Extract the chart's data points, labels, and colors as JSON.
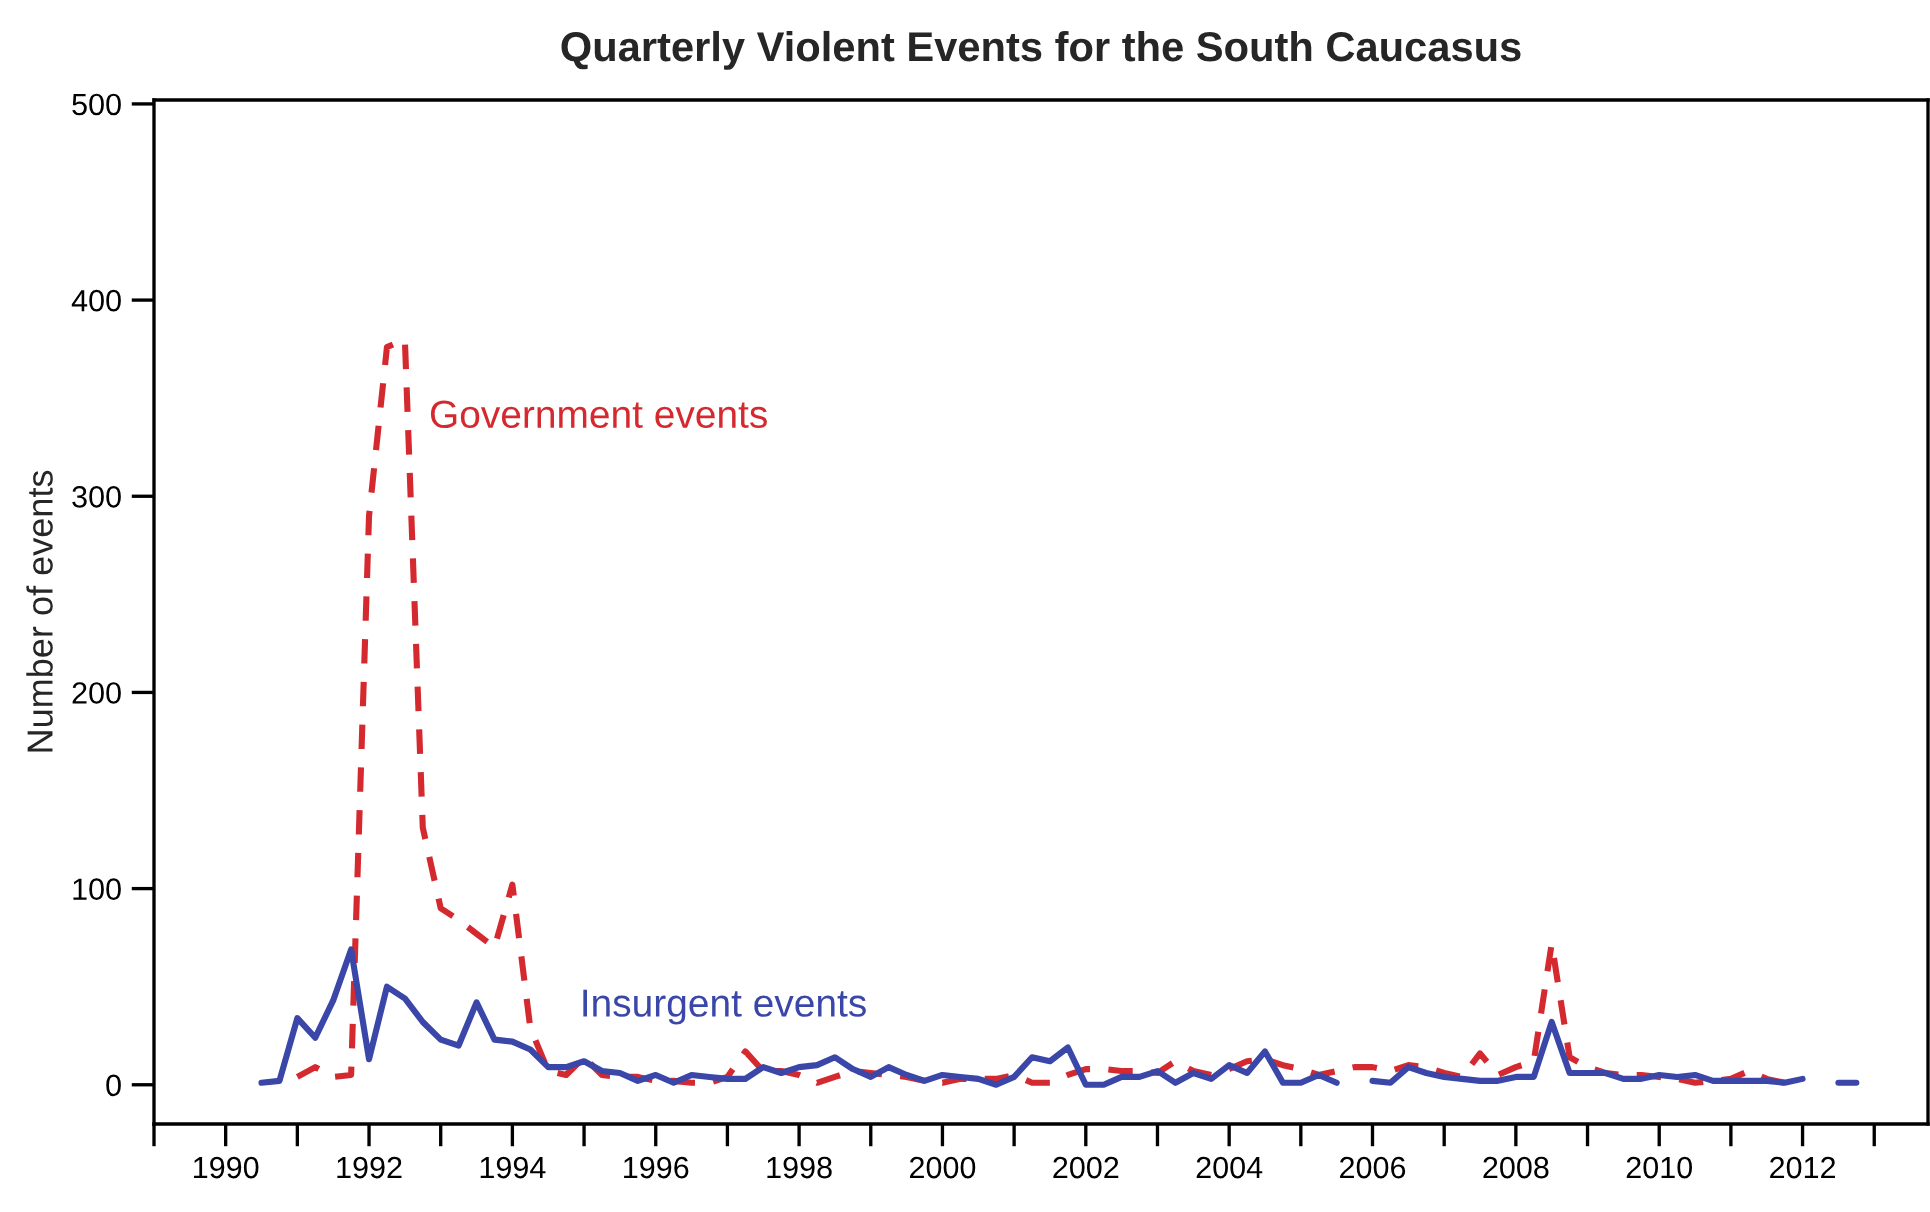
{
  "chart_data": {
    "type": "line",
    "title": "Quarterly Violent Events for the South Caucasus",
    "ylabel": "Number of events",
    "x": [
      1990.5,
      1990.75,
      1991,
      1991.25,
      1991.5,
      1991.75,
      1992,
      1992.25,
      1992.5,
      1992.75,
      1993,
      1993.25,
      1993.5,
      1993.75,
      1994,
      1994.25,
      1994.5,
      1994.75,
      1995,
      1995.25,
      1995.5,
      1995.75,
      1996,
      1996.25,
      1996.5,
      1996.75,
      1997,
      1997.25,
      1997.5,
      1997.75,
      1998,
      1998.25,
      1998.5,
      1998.75,
      1999,
      1999.25,
      1999.5,
      1999.75,
      2000,
      2000.25,
      2000.5,
      2000.75,
      2001,
      2001.25,
      2001.5,
      2001.75,
      2002,
      2002.25,
      2002.5,
      2002.75,
      2003,
      2003.25,
      2003.5,
      2003.75,
      2004,
      2004.25,
      2004.5,
      2004.75,
      2005,
      2005.25,
      2005.5,
      2005.75,
      2006,
      2006.25,
      2006.5,
      2006.75,
      2007,
      2007.25,
      2007.5,
      2007.75,
      2008,
      2008.25,
      2008.5,
      2008.75,
      2009,
      2009.25,
      2009.5,
      2009.75,
      2010,
      2010.25,
      2010.5,
      2010.75,
      2011,
      2011.25,
      2011.5,
      2011.75,
      2012,
      2012.25,
      2012.5,
      2012.75
    ],
    "series": [
      {
        "name": "Government events",
        "color": "#d42a2f",
        "line_style": "dashed",
        "values": [
          null,
          null,
          4,
          9,
          4,
          5,
          290,
          376,
          380,
          131,
          90,
          84,
          77,
          70,
          102,
          29,
          7,
          5,
          14,
          5,
          4,
          4,
          2,
          2,
          1,
          1,
          4,
          17,
          7,
          7,
          5,
          1,
          4,
          7,
          6,
          5,
          4,
          2,
          1,
          3,
          3,
          3,
          5,
          1,
          1,
          5,
          8,
          8,
          7,
          7,
          6,
          12,
          7,
          5,
          8,
          12,
          13,
          10,
          8,
          5,
          7,
          9,
          9,
          7,
          10,
          9,
          6,
          4,
          16,
          5,
          9,
          12,
          72,
          14,
          9,
          6,
          5,
          5,
          4,
          3,
          1,
          2,
          3,
          7,
          3,
          1,
          null,
          null,
          null,
          null
        ]
      },
      {
        "name": "Insurgent events",
        "color": "#3a47a8",
        "line_style": "solid",
        "values": [
          1,
          2,
          34,
          24,
          43,
          69,
          13,
          50,
          44,
          32,
          23,
          20,
          42,
          23,
          22,
          18,
          9,
          9,
          12,
          7,
          6,
          2,
          5,
          1,
          5,
          4,
          3,
          3,
          9,
          6,
          9,
          10,
          14,
          8,
          4,
          9,
          5,
          2,
          5,
          4,
          3,
          0,
          4,
          14,
          12,
          19,
          0,
          0,
          4,
          4,
          7,
          1,
          6,
          3,
          10,
          6,
          17,
          1,
          1,
          5,
          1,
          null,
          2,
          1,
          9,
          6,
          4,
          3,
          2,
          2,
          4,
          4,
          32,
          6,
          6,
          6,
          3,
          3,
          5,
          4,
          5,
          2,
          2,
          2,
          2,
          1,
          3,
          null,
          1,
          1
        ]
      }
    ],
    "xlim": [
      1989,
      2013.75
    ],
    "ylim": [
      -20,
      502
    ],
    "xticks": [
      {
        "value": 1989,
        "label": null
      },
      1990,
      {
        "value": 1991,
        "label": null
      },
      1992,
      {
        "value": 1993,
        "label": null
      },
      1994,
      {
        "value": 1995,
        "label": null
      },
      1996,
      {
        "value": 1997,
        "label": null
      },
      1998,
      {
        "value": 1999,
        "label": null
      },
      2000,
      {
        "value": 2001,
        "label": null
      },
      2002,
      {
        "value": 2003,
        "label": null
      },
      2004,
      {
        "value": 2005,
        "label": null
      },
      2006,
      {
        "value": 2007,
        "label": null
      },
      2008,
      {
        "value": 2009,
        "label": null
      },
      2010,
      {
        "value": 2011,
        "label": null
      },
      2012,
      {
        "value": 2013,
        "label": null
      }
    ],
    "yticks": [
      0,
      100,
      200,
      300,
      400,
      500
    ],
    "grid": false,
    "legend": false,
    "marker": "none"
  }
}
